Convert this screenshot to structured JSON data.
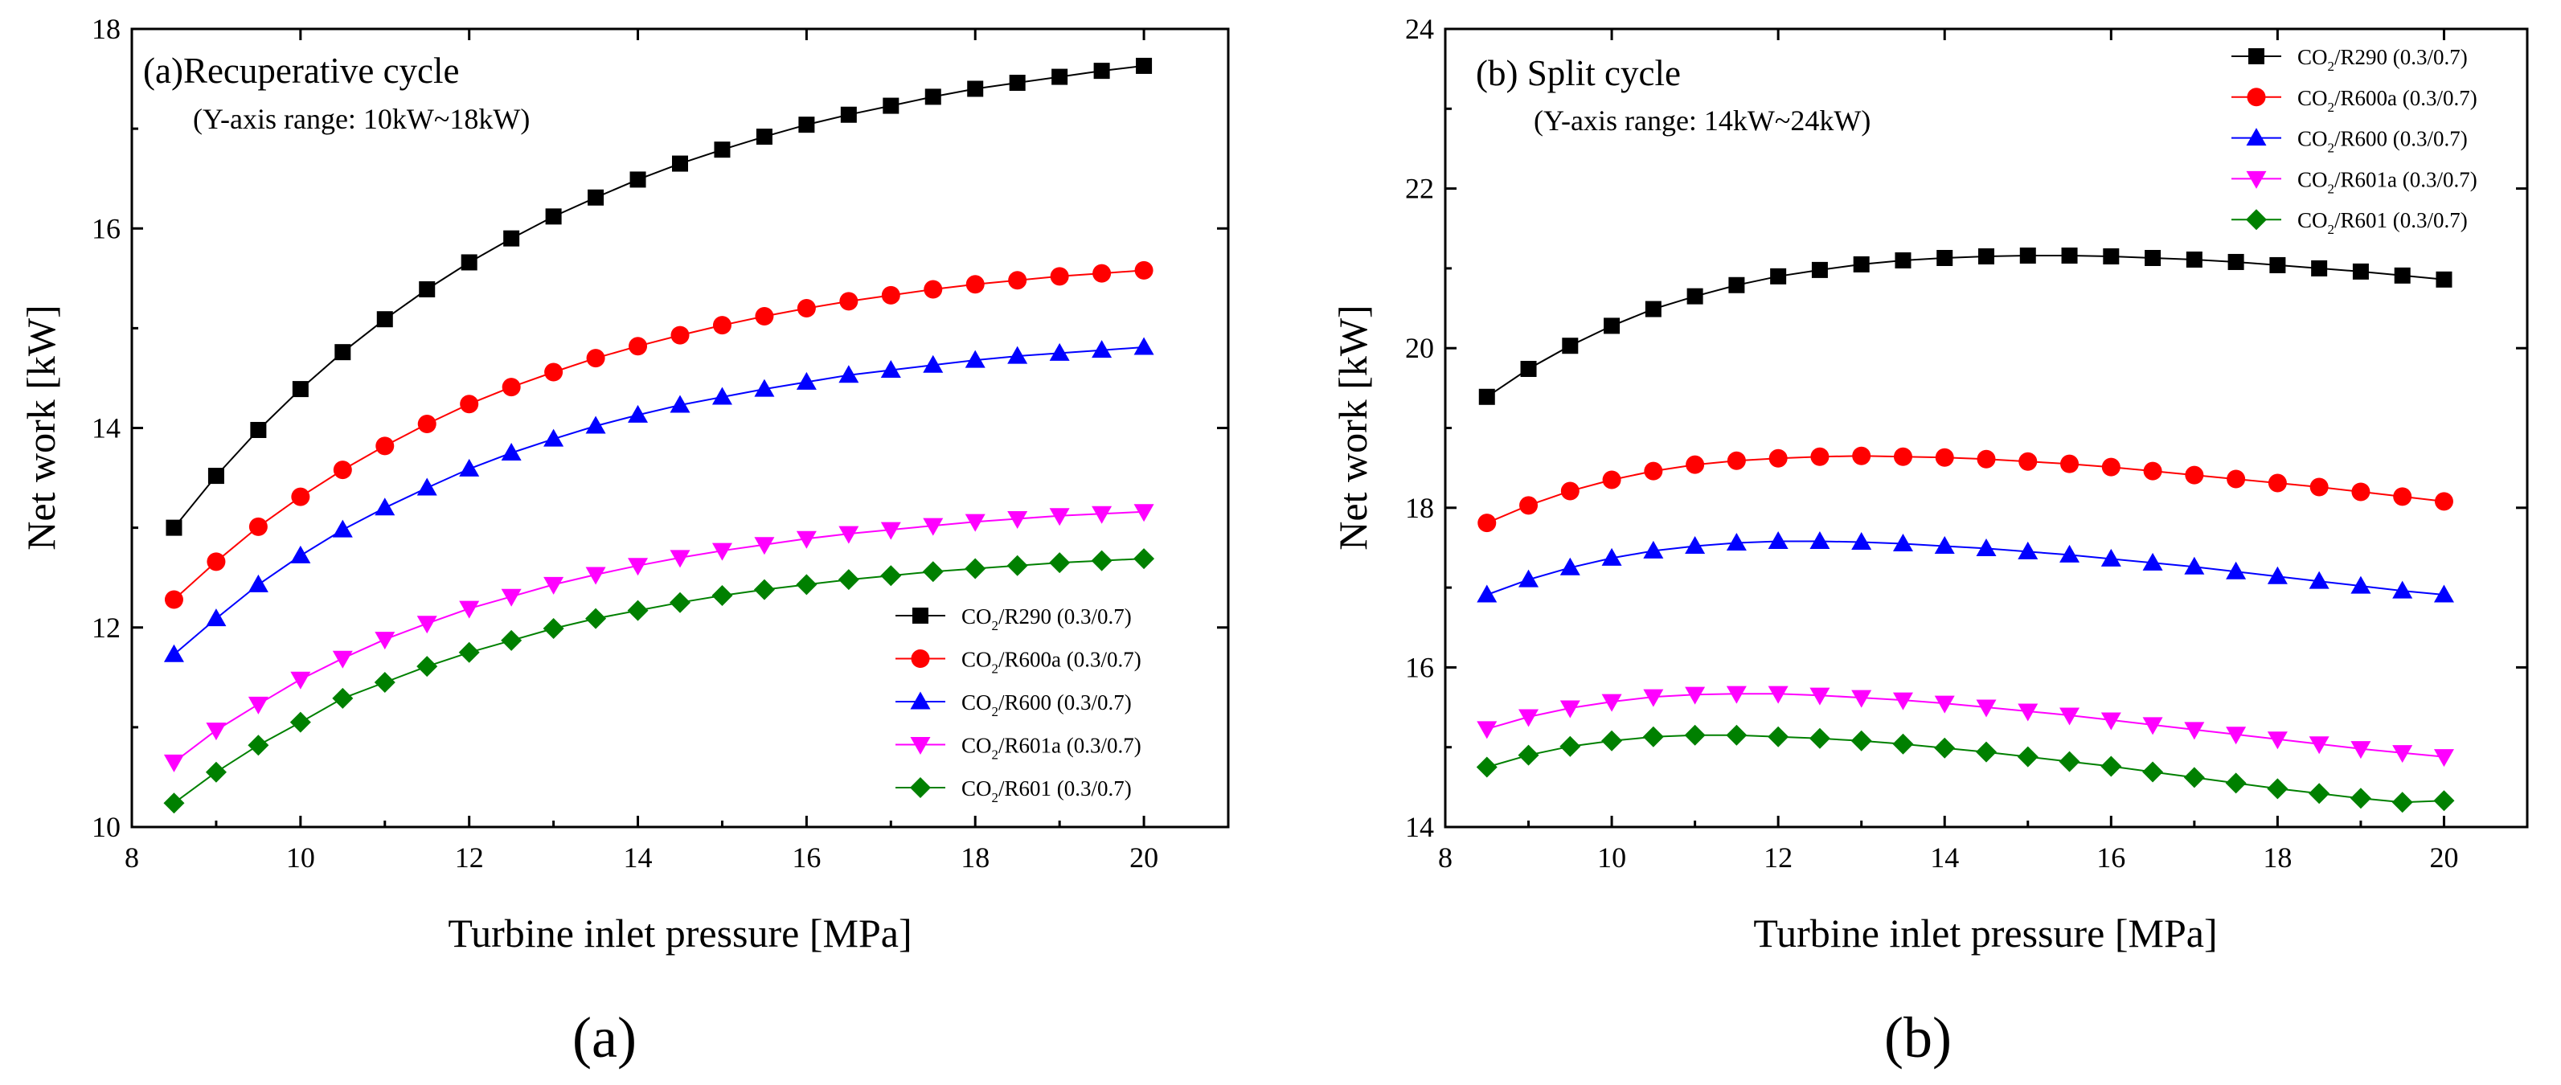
{
  "chart_data": [
    {
      "type": "line",
      "panel": "a",
      "title": "(a)Recuperative cycle",
      "subtitle": "(Y-axis range: 10kW~18kW)",
      "xlabel": "Turbine inlet pressure [MPa]",
      "ylabel": "Net work [kW]",
      "xlim": [
        8,
        21
      ],
      "ylim": [
        10,
        18
      ],
      "xticks": [
        8,
        10,
        12,
        14,
        16,
        18,
        20
      ],
      "yticks": [
        10,
        12,
        14,
        16,
        18
      ],
      "legend_position": "bottom-right",
      "panel_label": "(a)",
      "x": [
        8.5,
        9,
        9.5,
        10,
        10.5,
        11,
        11.5,
        12,
        12.5,
        13,
        13.5,
        14,
        14.5,
        15,
        15.5,
        16,
        16.5,
        17,
        17.5,
        18,
        18.5,
        19,
        19.5,
        20
      ],
      "series": [
        {
          "name": "CO2/R290 (0.3/0.7)",
          "label_main": "CO",
          "label_sub": "2",
          "label_rest": "/R290 (0.3/0.7)",
          "color": "#000000",
          "marker": "square",
          "values": [
            13.0,
            13.52,
            13.98,
            14.39,
            14.76,
            15.09,
            15.39,
            15.66,
            15.9,
            16.12,
            16.31,
            16.49,
            16.65,
            16.79,
            16.92,
            17.04,
            17.14,
            17.23,
            17.32,
            17.4,
            17.46,
            17.52,
            17.58,
            17.63
          ]
        },
        {
          "name": "CO2/R600a (0.3/0.7)",
          "label_main": "CO",
          "label_sub": "2",
          "label_rest": "/R600a (0.3/0.7)",
          "color": "#ff0000",
          "marker": "circle",
          "values": [
            12.28,
            12.66,
            13.01,
            13.31,
            13.58,
            13.82,
            14.04,
            14.24,
            14.41,
            14.56,
            14.7,
            14.82,
            14.93,
            15.03,
            15.12,
            15.2,
            15.27,
            15.33,
            15.39,
            15.44,
            15.48,
            15.52,
            15.55,
            15.58
          ]
        },
        {
          "name": "CO2/R600 (0.3/0.7)",
          "label_main": "CO",
          "label_sub": "2",
          "label_rest": "/R600 (0.3/0.7)",
          "color": "#0000ff",
          "marker": "triangle-up",
          "values": [
            11.73,
            12.09,
            12.43,
            12.72,
            12.98,
            13.2,
            13.4,
            13.59,
            13.75,
            13.89,
            14.02,
            14.13,
            14.23,
            14.31,
            14.39,
            14.46,
            14.53,
            14.58,
            14.63,
            14.68,
            14.72,
            14.75,
            14.78,
            14.81
          ]
        },
        {
          "name": "CO2/R601a (0.3/0.7)",
          "label_main": "CO",
          "label_sub": "2",
          "label_rest": "/R601a (0.3/0.7)",
          "color": "#ff00ff",
          "marker": "triangle-down",
          "values": [
            10.65,
            10.97,
            11.23,
            11.48,
            11.69,
            11.88,
            12.04,
            12.19,
            12.31,
            12.43,
            12.53,
            12.62,
            12.7,
            12.77,
            12.83,
            12.89,
            12.94,
            12.98,
            13.02,
            13.06,
            13.09,
            13.12,
            13.14,
            13.16
          ]
        },
        {
          "name": "CO2/R601 (0.3/0.7)",
          "label_main": "CO",
          "label_sub": "2",
          "label_rest": "/R601 (0.3/0.7)",
          "color": "#008000",
          "marker": "diamond",
          "values": [
            10.24,
            10.55,
            10.82,
            11.05,
            11.29,
            11.45,
            11.61,
            11.75,
            11.87,
            11.99,
            12.09,
            12.17,
            12.25,
            12.32,
            12.38,
            12.43,
            12.48,
            12.52,
            12.56,
            12.59,
            12.62,
            12.65,
            12.67,
            12.69
          ]
        }
      ]
    },
    {
      "type": "line",
      "panel": "b",
      "title": "(b) Split cycle",
      "subtitle": "(Y-axis range: 14kW~24kW)",
      "xlabel": "Turbine inlet pressure [MPa]",
      "ylabel": "Net work [kW]",
      "xlim": [
        8,
        21
      ],
      "ylim": [
        14,
        24
      ],
      "xticks": [
        8,
        10,
        12,
        14,
        16,
        18,
        20
      ],
      "yticks": [
        14,
        16,
        18,
        20,
        22,
        24
      ],
      "legend_position": "top-right",
      "panel_label": "(b)",
      "x": [
        8.5,
        9,
        9.5,
        10,
        10.5,
        11,
        11.5,
        12,
        12.5,
        13,
        13.5,
        14,
        14.5,
        15,
        15.5,
        16,
        16.5,
        17,
        17.5,
        18,
        18.5,
        19,
        19.5,
        20
      ],
      "series": [
        {
          "name": "CO2/R290 (0.3/0.7)",
          "label_main": "CO",
          "label_sub": "2",
          "label_rest": "/R290 (0.3/0.7)",
          "color": "#000000",
          "marker": "square",
          "values": [
            19.39,
            19.74,
            20.03,
            20.28,
            20.49,
            20.65,
            20.79,
            20.9,
            20.98,
            21.05,
            21.1,
            21.13,
            21.15,
            21.16,
            21.16,
            21.15,
            21.13,
            21.11,
            21.08,
            21.04,
            21.0,
            20.96,
            20.91,
            20.86
          ]
        },
        {
          "name": "CO2/R600a (0.3/0.7)",
          "label_main": "CO",
          "label_sub": "2",
          "label_rest": "/R600a (0.3/0.7)",
          "color": "#ff0000",
          "marker": "circle",
          "values": [
            17.81,
            18.03,
            18.21,
            18.35,
            18.46,
            18.54,
            18.59,
            18.62,
            18.64,
            18.65,
            18.64,
            18.63,
            18.61,
            18.58,
            18.55,
            18.51,
            18.46,
            18.41,
            18.36,
            18.31,
            18.26,
            18.2,
            18.14,
            18.08
          ]
        },
        {
          "name": "CO2/R600 (0.3/0.7)",
          "label_main": "CO",
          "label_sub": "2",
          "label_rest": "/R600 (0.3/0.7)",
          "color": "#0000ff",
          "marker": "triangle-up",
          "values": [
            16.91,
            17.1,
            17.25,
            17.37,
            17.46,
            17.52,
            17.56,
            17.58,
            17.58,
            17.57,
            17.55,
            17.52,
            17.49,
            17.45,
            17.41,
            17.36,
            17.31,
            17.26,
            17.2,
            17.14,
            17.08,
            17.02,
            16.96,
            16.91
          ]
        },
        {
          "name": "CO2/R601a (0.3/0.7)",
          "label_main": "CO",
          "label_sub": "2",
          "label_rest": "/R601a (0.3/0.7)",
          "color": "#ff00ff",
          "marker": "triangle-down",
          "values": [
            15.23,
            15.38,
            15.49,
            15.57,
            15.63,
            15.66,
            15.67,
            15.67,
            15.65,
            15.62,
            15.59,
            15.55,
            15.5,
            15.45,
            15.4,
            15.34,
            15.28,
            15.22,
            15.16,
            15.1,
            15.04,
            14.98,
            14.93,
            14.88
          ]
        },
        {
          "name": "CO2/R601 (0.3/0.7)",
          "label_main": "CO",
          "label_sub": "2",
          "label_rest": "/R601 (0.3/0.7)",
          "color": "#008000",
          "marker": "diamond",
          "values": [
            14.75,
            14.9,
            15.01,
            15.08,
            15.13,
            15.15,
            15.15,
            15.13,
            15.11,
            15.08,
            15.04,
            14.99,
            14.94,
            14.88,
            14.82,
            14.76,
            14.69,
            14.62,
            14.55,
            14.48,
            14.42,
            14.36,
            14.31,
            14.33
          ]
        }
      ]
    }
  ]
}
